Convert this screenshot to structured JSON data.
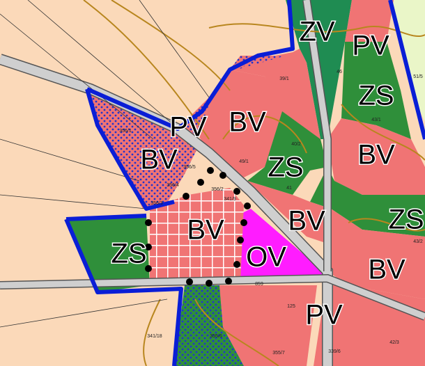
{
  "zones": [
    {
      "label": "ZV"
    },
    {
      "label": "PV"
    },
    {
      "label": "ZS"
    },
    {
      "label": "PV"
    },
    {
      "label": "BV"
    },
    {
      "label": "BV"
    },
    {
      "label": "BV"
    },
    {
      "label": "ZS"
    },
    {
      "label": "BV"
    },
    {
      "label": "BV"
    },
    {
      "label": "ZS"
    },
    {
      "label": "ZS"
    },
    {
      "label": "OV"
    },
    {
      "label": "BV"
    },
    {
      "label": "PV"
    }
  ],
  "parcels": [
    {
      "label": "39/1"
    },
    {
      "label": "46"
    },
    {
      "label": "43/1"
    },
    {
      "label": "40/2"
    },
    {
      "label": "49/1"
    },
    {
      "label": "356/5"
    },
    {
      "label": "356/4"
    },
    {
      "label": "356/2"
    },
    {
      "label": "341/9"
    },
    {
      "label": "41"
    },
    {
      "label": "356/1"
    },
    {
      "label": "356/3"
    },
    {
      "label": "43/2"
    },
    {
      "label": "859"
    },
    {
      "label": "125"
    },
    {
      "label": "341/18"
    },
    {
      "label": "355/6"
    },
    {
      "label": "355/7"
    },
    {
      "label": "339/6"
    },
    {
      "label": "42/3"
    },
    {
      "label": "51/5"
    }
  ]
}
